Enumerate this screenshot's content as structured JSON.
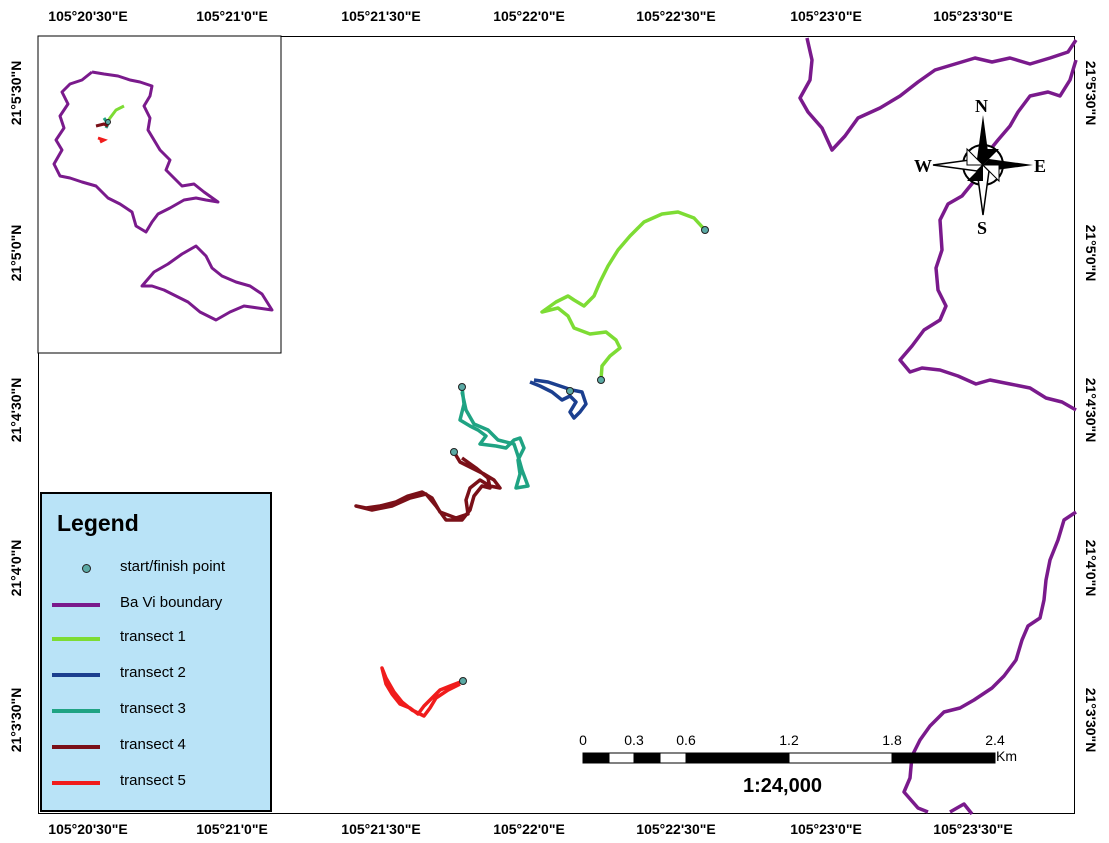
{
  "axes": {
    "top": [
      "105°20'30\"E",
      "105°21'0\"E",
      "105°21'30\"E",
      "105°22'0\"E",
      "105°22'30\"E",
      "105°23'0\"E",
      "105°23'30\"E"
    ],
    "bottom": [
      "105°20'30\"E",
      "105°21'0\"E",
      "105°21'30\"E",
      "105°22'0\"E",
      "105°22'30\"E",
      "105°23'0\"E",
      "105°23'30\"E"
    ],
    "left": [
      "21°5'30\"N",
      "21°5'0\"N",
      "21°4'30\"N",
      "21°4'0\"N",
      "21°3'30\"N"
    ],
    "right": [
      "21°5'30\"N",
      "21°5'0\"N",
      "21°4'30\"N",
      "21°4'0\"N",
      "21°3'30\"N"
    ]
  },
  "legend": {
    "title": "Legend",
    "items": [
      {
        "label": "start/finish point",
        "kind": "point",
        "color": "#5aa9a4"
      },
      {
        "label": "Ba Vi boundary",
        "kind": "line",
        "color": "#7a1a8c"
      },
      {
        "label": "transect 1",
        "kind": "line",
        "color": "#7ddc34"
      },
      {
        "label": "transect 2",
        "kind": "line",
        "color": "#1b3f8f"
      },
      {
        "label": "transect 3",
        "kind": "line",
        "color": "#1fa383"
      },
      {
        "label": "transect 4",
        "kind": "line",
        "color": "#7a1018"
      },
      {
        "label": "transect 5",
        "kind": "line",
        "color": "#f01c1c"
      }
    ]
  },
  "scale_bar": {
    "labels": [
      "0",
      "0.3",
      "0.6",
      "1.2",
      "1.8",
      "2.4"
    ],
    "unit": "Km",
    "ratio": "1:24,000"
  },
  "compass": {
    "n": "N",
    "s": "S",
    "e": "E",
    "w": "W"
  },
  "colors": {
    "boundary": "#7a1a8c",
    "transect1": "#7ddc34",
    "transect2": "#1b3f8f",
    "transect3": "#1fa383",
    "transect4": "#7a1018",
    "transect5": "#f01c1c",
    "legend_bg": "#b9e3f7"
  }
}
